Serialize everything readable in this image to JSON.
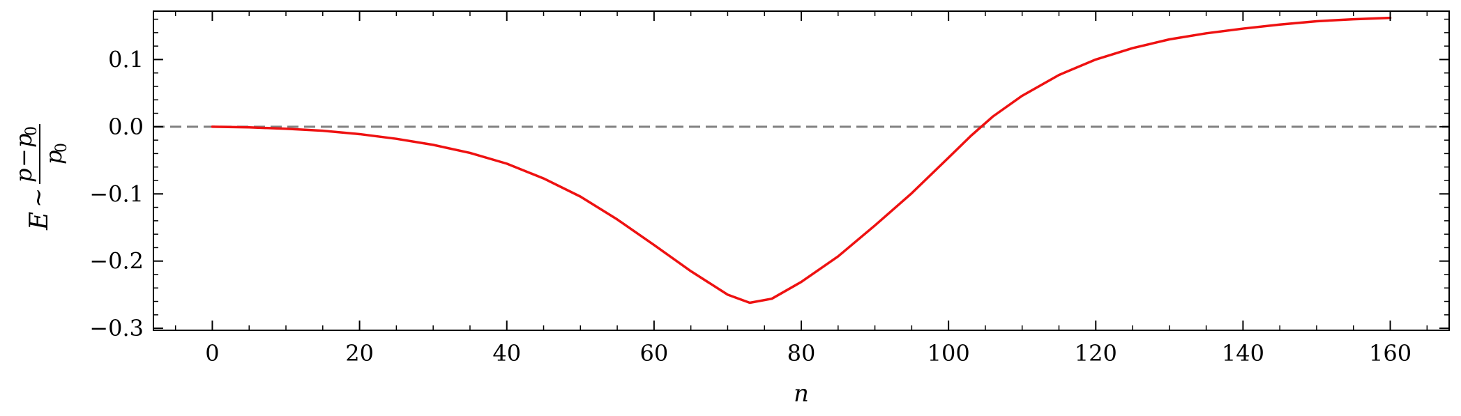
{
  "chart_data": {
    "type": "line",
    "title": "",
    "xlabel": "n",
    "ylabel": {
      "lhs": "E",
      "relation": "~",
      "numerator_var": "p",
      "numerator_op": "−",
      "numerator_sub_var": "p",
      "numerator_sub_index": "0",
      "denominator_var": "p",
      "denominator_index": "0"
    },
    "xlim": [
      -8,
      168
    ],
    "ylim": [
      -0.303,
      0.172
    ],
    "xticks": [
      0,
      20,
      40,
      60,
      80,
      100,
      120,
      140,
      160
    ],
    "xtick_labels": [
      "0",
      "20",
      "40",
      "60",
      "80",
      "100",
      "120",
      "140",
      "160"
    ],
    "yticks": [
      -0.3,
      -0.2,
      -0.1,
      0.0,
      0.1
    ],
    "ytick_labels": [
      "−0.3",
      "−0.2",
      "−0.1",
      "0.0",
      "0.1"
    ],
    "x_minor_step": 5,
    "y_minor_step": 0.02,
    "grid": false,
    "reference_line": {
      "y": 0.0,
      "style": "dashed",
      "color": "#808080"
    },
    "series": [
      {
        "color": "#ee1111",
        "x": [
          0,
          5,
          10,
          15,
          20,
          25,
          30,
          35,
          40,
          45,
          50,
          55,
          60,
          65,
          70,
          73,
          76,
          80,
          85,
          90,
          95,
          100,
          103,
          106,
          110,
          115,
          120,
          125,
          130,
          135,
          140,
          145,
          150,
          155,
          160
        ],
        "y": [
          0.0,
          -0.001,
          -0.003,
          -0.006,
          -0.011,
          -0.018,
          -0.027,
          -0.039,
          -0.055,
          -0.077,
          -0.104,
          -0.138,
          -0.176,
          -0.215,
          -0.25,
          -0.262,
          -0.256,
          -0.231,
          -0.193,
          -0.147,
          -0.099,
          -0.046,
          -0.014,
          0.015,
          0.046,
          0.077,
          0.1,
          0.117,
          0.13,
          0.139,
          0.146,
          0.152,
          0.157,
          0.16,
          0.162
        ]
      }
    ]
  }
}
